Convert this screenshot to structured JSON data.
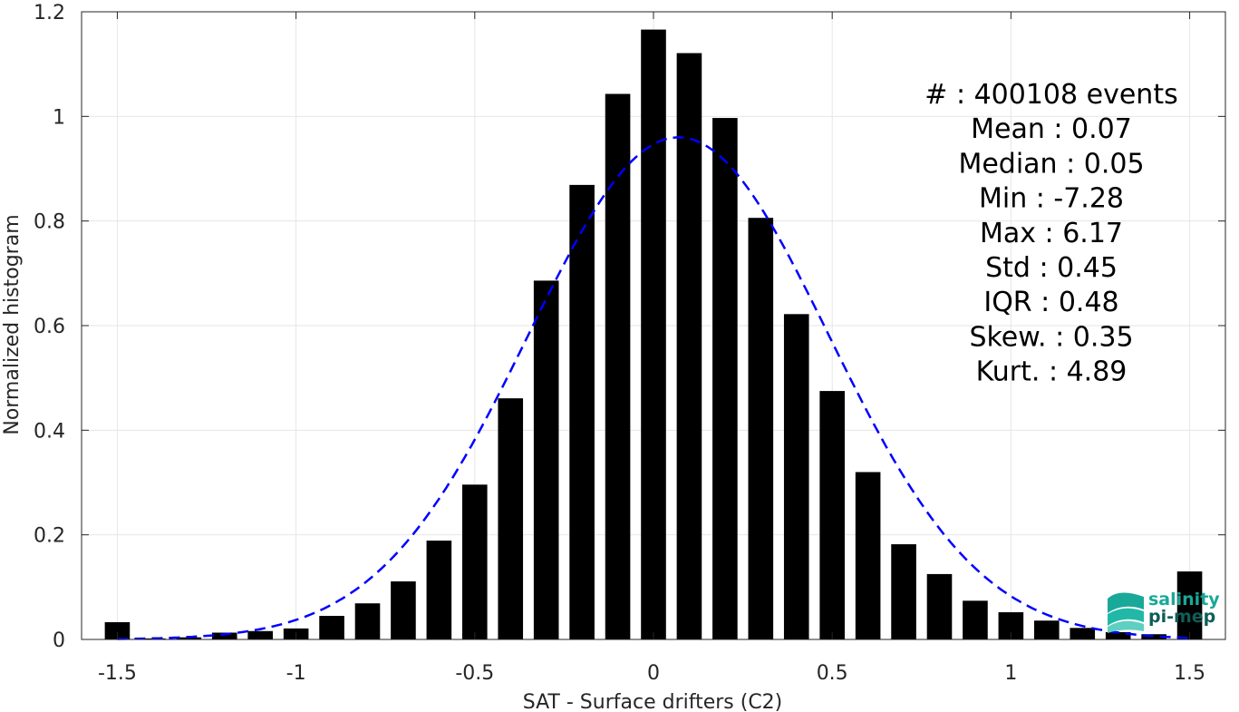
{
  "chart_data": {
    "type": "bar",
    "xlabel": "SAT - Surface drifters (C2)",
    "ylabel": "Normalized histogram",
    "xlim": [
      -1.6,
      1.6
    ],
    "ylim": [
      0,
      1.2
    ],
    "grid": true,
    "xticks": [
      -1.5,
      -1,
      -0.5,
      0,
      0.5,
      1,
      1.5
    ],
    "xtick_labels": [
      "-1.5",
      "-1",
      "-0.5",
      "0",
      "0.5",
      "1",
      "1.5"
    ],
    "yticks": [
      0,
      0.2,
      0.4,
      0.6,
      0.8,
      1,
      1.2
    ],
    "ytick_labels": [
      "0",
      "0.2",
      "0.4",
      "0.6",
      "0.8",
      "1",
      "1.2"
    ],
    "bar_width": 0.07,
    "bar_color": "#000000",
    "bins": [
      {
        "x": -1.5,
        "y": 0.033
      },
      {
        "x": -1.4,
        "y": 0.002
      },
      {
        "x": -1.3,
        "y": 0.004
      },
      {
        "x": -1.2,
        "y": 0.013
      },
      {
        "x": -1.1,
        "y": 0.016
      },
      {
        "x": -1.0,
        "y": 0.021
      },
      {
        "x": -0.9,
        "y": 0.045
      },
      {
        "x": -0.8,
        "y": 0.069
      },
      {
        "x": -0.7,
        "y": 0.111
      },
      {
        "x": -0.6,
        "y": 0.189
      },
      {
        "x": -0.5,
        "y": 0.296
      },
      {
        "x": -0.4,
        "y": 0.461
      },
      {
        "x": -0.3,
        "y": 0.686
      },
      {
        "x": -0.2,
        "y": 0.869
      },
      {
        "x": -0.1,
        "y": 1.043
      },
      {
        "x": 0.0,
        "y": 1.166
      },
      {
        "x": 0.1,
        "y": 1.121
      },
      {
        "x": 0.2,
        "y": 0.997
      },
      {
        "x": 0.3,
        "y": 0.806
      },
      {
        "x": 0.4,
        "y": 0.622
      },
      {
        "x": 0.5,
        "y": 0.475
      },
      {
        "x": 0.6,
        "y": 0.32
      },
      {
        "x": 0.7,
        "y": 0.182
      },
      {
        "x": 0.8,
        "y": 0.125
      },
      {
        "x": 0.9,
        "y": 0.074
      },
      {
        "x": 1.0,
        "y": 0.052
      },
      {
        "x": 1.1,
        "y": 0.036
      },
      {
        "x": 1.2,
        "y": 0.022
      },
      {
        "x": 1.3,
        "y": 0.014
      },
      {
        "x": 1.4,
        "y": 0.01
      },
      {
        "x": 1.5,
        "y": 0.13
      }
    ],
    "fit_curve": {
      "type": "gaussian",
      "mean": 0.07,
      "std": 0.42,
      "peak": 0.96,
      "x_range": [
        -1.5,
        1.5
      ],
      "color": "#0000ff",
      "style": "dashed"
    }
  },
  "stats": [
    {
      "label": "#  : 400108 events"
    },
    {
      "label": "Mean : 0.07"
    },
    {
      "label": "Median : 0.05"
    },
    {
      "label": "Min : -7.28"
    },
    {
      "label": "Max : 6.17"
    },
    {
      "label": "Std : 0.45"
    },
    {
      "label": "IQR : 0.48"
    },
    {
      "label": "Skew. : 0.35"
    },
    {
      "label": "Kurt. : 4.89"
    }
  ],
  "logo": {
    "line1": "salinity",
    "line2": "pi-mep",
    "color1": "#1aa899",
    "color2": "#0e5e57"
  }
}
